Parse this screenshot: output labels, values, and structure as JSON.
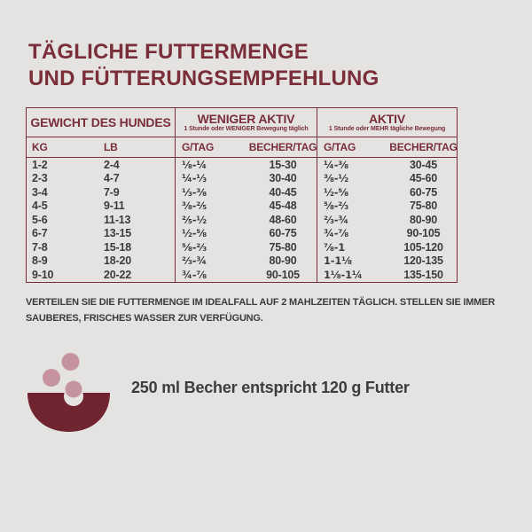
{
  "colors": {
    "background": "#e4e3e1",
    "maroon": "#7a2e3a",
    "bowl": "#70242f",
    "kibble": "#c5949f",
    "dark_text": "#3d3c3c"
  },
  "title": {
    "line1": "TÄGLICHE FUTTERMENGE",
    "line2": "UND FÜTTERUNGSEMPFEHLUNG"
  },
  "table": {
    "weight_group_label": "GEWICHT DES HUNDES",
    "less_active_group": {
      "label": "WENIGER AKTIV",
      "caption": "1 Stunde oder WENIGER Bewegung täglich"
    },
    "active_group": {
      "label": "AKTIV",
      "caption": "1 Stunde oder MEHR tägliche Bewegung"
    },
    "subheaders": {
      "kg": "KG",
      "lb": "LB",
      "grams_per_day": "G/TAG",
      "cups_per_day": "BECHER/TAG"
    },
    "rows": [
      {
        "kg": "1-2",
        "lb": "2-4",
        "la_g": "⅛-¼",
        "la_cups": "15-30",
        "a_g": "¼-⅜",
        "a_cups": "30-45"
      },
      {
        "kg": "2-3",
        "lb": "4-7",
        "la_g": "¼-⅓",
        "la_cups": "30-40",
        "a_g": "⅜-½",
        "a_cups": "45-60"
      },
      {
        "kg": "3-4",
        "lb": "7-9",
        "la_g": "⅓-⅜",
        "la_cups": "40-45",
        "a_g": "½-⅝",
        "a_cups": "60-75"
      },
      {
        "kg": "4-5",
        "lb": "9-11",
        "la_g": "⅜-⅖",
        "la_cups": "45-48",
        "a_g": "⅝-⅔",
        "a_cups": "75-80"
      },
      {
        "kg": "5-6",
        "lb": "11-13",
        "la_g": "⅖-½",
        "la_cups": "48-60",
        "a_g": "⅔-¾",
        "a_cups": "80-90"
      },
      {
        "kg": "6-7",
        "lb": "13-15",
        "la_g": "½-⅝",
        "la_cups": "60-75",
        "a_g": "¾-⅞",
        "a_cups": "90-105"
      },
      {
        "kg": "7-8",
        "lb": "15-18",
        "la_g": "⅝-⅔",
        "la_cups": "75-80",
        "a_g": "⅞-1",
        "a_cups": "105-120"
      },
      {
        "kg": "8-9",
        "lb": "18-20",
        "la_g": "⅔-¾",
        "la_cups": "80-90",
        "a_g": "1-1⅛",
        "a_cups": "120-135"
      },
      {
        "kg": "9-10",
        "lb": "20-22",
        "la_g": "¾-⅞",
        "la_cups": "90-105",
        "a_g": "1⅛-1¼",
        "a_cups": "135-150"
      }
    ]
  },
  "note": {
    "line1": "VERTEILEN SIE DIE FUTTERMENGE IM IDEALFALL AUF 2 MAHLZEITEN TÄGLICH. STELLEN SIE IMMER",
    "line2": "SAUBERES, FRISCHES WASSER ZUR VERFÜGUNG."
  },
  "equivalence_text": "250 ml Becher entspricht 120 g Futter"
}
